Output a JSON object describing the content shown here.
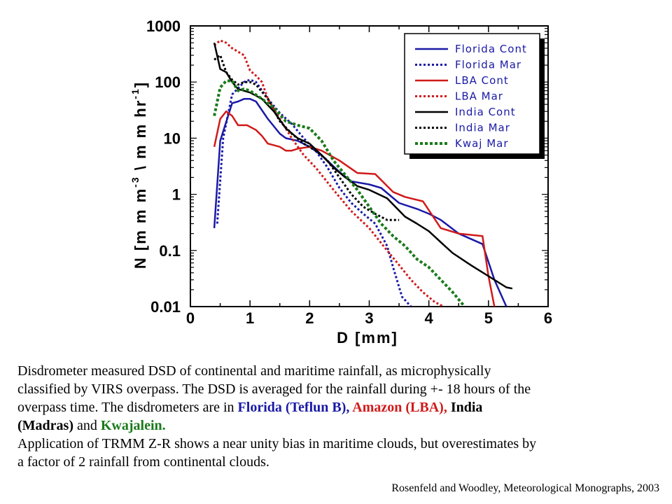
{
  "chart_data": {
    "type": "line",
    "xlabel": "D [mm]",
    "ylabel": "N [mm m-3 \\ mm hr-1]",
    "ylabel_parts": {
      "a": "N [m m m",
      "exp1": "-3",
      "b": " \\  m m hr",
      "exp2": "-1",
      "c": "]"
    },
    "xlim": [
      0,
      6
    ],
    "ylim": [
      0.01,
      1000
    ],
    "yscale": "log",
    "x_ticks": [
      "0",
      "1",
      "2",
      "3",
      "4",
      "5",
      "6"
    ],
    "y_ticks": [
      "0.01",
      "0.1",
      "1",
      "10",
      "100",
      "1000"
    ],
    "legend_position": "top-right",
    "series": [
      {
        "name": "Florida Cont",
        "color": "#1a1aa6",
        "dash": "solid",
        "width": 2.5,
        "points": [
          [
            0.4,
            0.25
          ],
          [
            0.5,
            9
          ],
          [
            0.7,
            42
          ],
          [
            0.8,
            45
          ],
          [
            0.9,
            50
          ],
          [
            1.0,
            50
          ],
          [
            1.1,
            45
          ],
          [
            1.3,
            22
          ],
          [
            1.5,
            12
          ],
          [
            1.6,
            10
          ],
          [
            1.8,
            9
          ],
          [
            2.0,
            7
          ],
          [
            2.2,
            5
          ],
          [
            2.5,
            2.5
          ],
          [
            2.7,
            1.7
          ],
          [
            3.0,
            1.5
          ],
          [
            3.2,
            1.3
          ],
          [
            3.5,
            0.7
          ],
          [
            3.8,
            0.55
          ],
          [
            4.0,
            0.45
          ],
          [
            4.2,
            0.35
          ],
          [
            4.5,
            0.2
          ],
          [
            4.9,
            0.13
          ],
          [
            5.1,
            0.03
          ],
          [
            5.3,
            0.01
          ]
        ]
      },
      {
        "name": "Florida Mar",
        "color": "#1a1aa6",
        "dash": "dot",
        "width": 3,
        "points": [
          [
            0.45,
            0.3
          ],
          [
            0.55,
            10
          ],
          [
            0.7,
            60
          ],
          [
            0.9,
            100
          ],
          [
            1.0,
            110
          ],
          [
            1.1,
            100
          ],
          [
            1.3,
            50
          ],
          [
            1.5,
            28
          ],
          [
            1.7,
            18
          ],
          [
            1.9,
            10
          ],
          [
            2.1,
            6
          ],
          [
            2.3,
            3
          ],
          [
            2.5,
            1.3
          ],
          [
            2.7,
            0.7
          ],
          [
            2.9,
            0.45
          ],
          [
            3.1,
            0.3
          ],
          [
            3.3,
            0.12
          ],
          [
            3.4,
            0.05
          ],
          [
            3.55,
            0.015
          ],
          [
            3.7,
            0.01
          ]
        ]
      },
      {
        "name": "LBA Cont",
        "color": "#d11a1a",
        "dash": "solid",
        "width": 2.5,
        "points": [
          [
            0.4,
            7
          ],
          [
            0.5,
            22
          ],
          [
            0.6,
            30
          ],
          [
            0.7,
            25
          ],
          [
            0.8,
            17
          ],
          [
            0.95,
            17
          ],
          [
            1.1,
            14
          ],
          [
            1.2,
            11
          ],
          [
            1.3,
            8
          ],
          [
            1.4,
            7.5
          ],
          [
            1.5,
            7
          ],
          [
            1.6,
            6
          ],
          [
            1.7,
            6
          ],
          [
            1.8,
            6.5
          ],
          [
            2.0,
            7
          ],
          [
            2.2,
            6
          ],
          [
            2.5,
            4
          ],
          [
            2.8,
            2.4
          ],
          [
            3.1,
            2.3
          ],
          [
            3.4,
            1.1
          ],
          [
            3.6,
            0.9
          ],
          [
            3.9,
            0.75
          ],
          [
            4.2,
            0.25
          ],
          [
            4.5,
            0.2
          ],
          [
            4.9,
            0.18
          ],
          [
            5.0,
            0.035
          ],
          [
            5.1,
            0.01
          ]
        ]
      },
      {
        "name": "LBA Mar",
        "color": "#d11a1a",
        "dash": "dot",
        "width": 3,
        "points": [
          [
            0.4,
            450
          ],
          [
            0.5,
            550
          ],
          [
            0.6,
            500
          ],
          [
            0.7,
            400
          ],
          [
            0.9,
            300
          ],
          [
            1.0,
            160
          ],
          [
            1.1,
            130
          ],
          [
            1.2,
            100
          ],
          [
            1.3,
            50
          ],
          [
            1.5,
            22
          ],
          [
            1.7,
            10
          ],
          [
            1.9,
            5
          ],
          [
            2.1,
            3
          ],
          [
            2.4,
            1.2
          ],
          [
            2.7,
            0.5
          ],
          [
            3.0,
            0.25
          ],
          [
            3.3,
            0.1
          ],
          [
            3.5,
            0.055
          ],
          [
            3.7,
            0.03
          ],
          [
            3.9,
            0.018
          ],
          [
            4.1,
            0.012
          ],
          [
            4.25,
            0.01
          ]
        ]
      },
      {
        "name": "India Cont",
        "color": "#000000",
        "dash": "solid",
        "width": 2.5,
        "points": [
          [
            0.4,
            500
          ],
          [
            0.5,
            170
          ],
          [
            0.6,
            150
          ],
          [
            0.7,
            100
          ],
          [
            0.8,
            75
          ],
          [
            1.0,
            65
          ],
          [
            1.2,
            50
          ],
          [
            1.4,
            30
          ],
          [
            1.6,
            15
          ],
          [
            1.8,
            10
          ],
          [
            2.0,
            8
          ],
          [
            2.2,
            5
          ],
          [
            2.4,
            3
          ],
          [
            2.6,
            2
          ],
          [
            2.8,
            1.4
          ],
          [
            3.0,
            1.2
          ],
          [
            3.3,
            0.85
          ],
          [
            3.6,
            0.4
          ],
          [
            3.8,
            0.3
          ],
          [
            4.0,
            0.22
          ],
          [
            4.2,
            0.14
          ],
          [
            4.4,
            0.09
          ],
          [
            4.7,
            0.055
          ],
          [
            5.0,
            0.035
          ],
          [
            5.3,
            0.022
          ],
          [
            5.4,
            0.021
          ]
        ]
      },
      {
        "name": "India Mar",
        "color": "#000000",
        "dash": "dot",
        "width": 3,
        "points": [
          [
            0.4,
            250
          ],
          [
            0.5,
            300
          ],
          [
            0.6,
            150
          ],
          [
            0.7,
            110
          ],
          [
            0.8,
            90
          ],
          [
            0.9,
            100
          ],
          [
            1.0,
            100
          ],
          [
            1.1,
            90
          ],
          [
            1.3,
            50
          ],
          [
            1.5,
            20
          ],
          [
            1.7,
            12
          ],
          [
            1.9,
            8
          ],
          [
            2.1,
            6
          ],
          [
            2.3,
            4
          ],
          [
            2.5,
            2
          ],
          [
            2.7,
            1
          ],
          [
            2.9,
            0.6
          ],
          [
            3.1,
            0.45
          ],
          [
            3.3,
            0.35
          ],
          [
            3.5,
            0.35
          ]
        ]
      },
      {
        "name": "Kwaj Mar",
        "color": "#1a7a1a",
        "dash": "dot",
        "width": 4,
        "points": [
          [
            0.4,
            25
          ],
          [
            0.5,
            80
          ],
          [
            0.6,
            105
          ],
          [
            0.7,
            105
          ],
          [
            0.8,
            70
          ],
          [
            0.9,
            75
          ],
          [
            1.0,
            70
          ],
          [
            1.2,
            50
          ],
          [
            1.4,
            35
          ],
          [
            1.6,
            20
          ],
          [
            1.8,
            17
          ],
          [
            2.0,
            15
          ],
          [
            2.2,
            9
          ],
          [
            2.4,
            4
          ],
          [
            2.6,
            2.2
          ],
          [
            2.8,
            1.2
          ],
          [
            3.0,
            0.6
          ],
          [
            3.2,
            0.3
          ],
          [
            3.4,
            0.18
          ],
          [
            3.6,
            0.12
          ],
          [
            3.8,
            0.07
          ],
          [
            4.0,
            0.05
          ],
          [
            4.2,
            0.03
          ],
          [
            4.4,
            0.018
          ],
          [
            4.6,
            0.01
          ]
        ]
      }
    ]
  },
  "caption": {
    "line1": "Disdrometer measured DSD of continental and maritime rainfall, as microphysically",
    "line2": "classified by VIRS overpass. The DSD is averaged for the rainfall during  +- 18 hours of the",
    "line3_a": "overpass time. The disdrometers are in ",
    "florida": "Florida (Teflun B),",
    "amazon": " Amazon (LBA),",
    "india": " India",
    "line4_a": "(Madras)",
    "line4_b": " and ",
    "kwajalein": "Kwajalein.",
    "line5": "Application of TRMM Z-R shows a near unity bias in maritime clouds, but overestimates by",
    "line6": "a factor of 2 rainfall from continental clouds."
  },
  "citation": "Rosenfeld and Woodley, Meteorological Monographs, 2003"
}
